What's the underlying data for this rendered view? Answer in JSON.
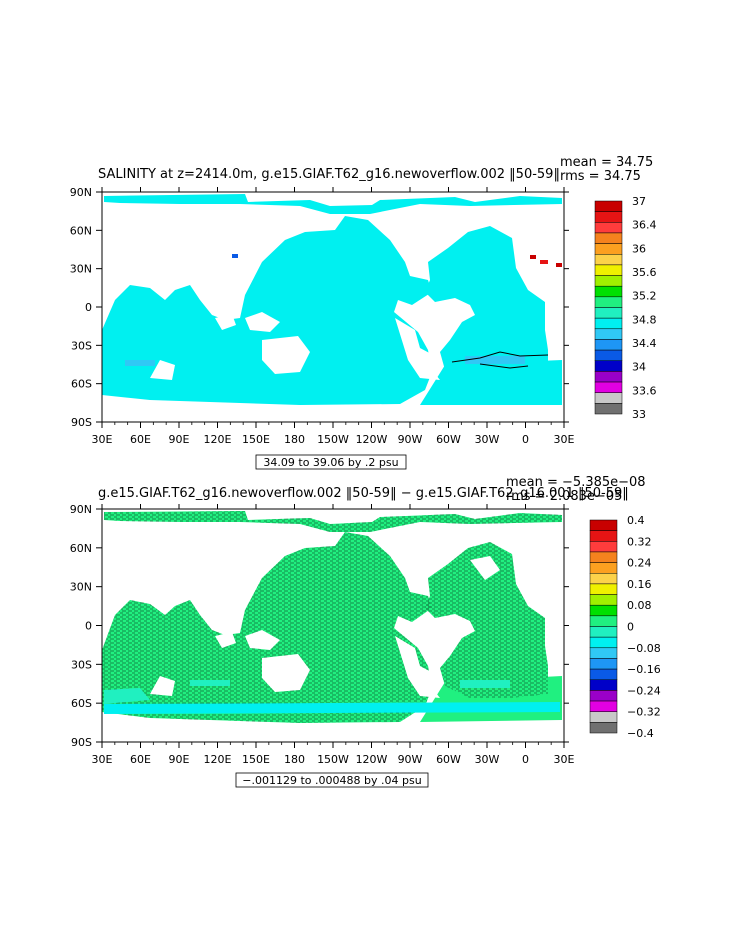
{
  "palette": [
    "#707070",
    "#c8c8c8",
    "#e200e2",
    "#9a00c8",
    "#0000c8",
    "#0a5ae6",
    "#1e96f5",
    "#30c8f5",
    "#00f0f0",
    "#20f0c0",
    "#20f080",
    "#00e000",
    "#a0f000",
    "#f0f000",
    "#fcd24a",
    "#fca020",
    "#f5821e",
    "#ff3c3c",
    "#e61414",
    "#c80000"
  ],
  "chart_data": [
    {
      "type": "heatmap",
      "title": "SALINITY at z=2414.0m, g.e15.GIAF.T62_g16.newoverflow.002 ‖50-59‖",
      "stats": [
        "mean = 34.75",
        "rms = 34.75"
      ],
      "x_ticks": [
        "30E",
        "60E",
        "90E",
        "120E",
        "150E",
        "180",
        "150W",
        "120W",
        "90W",
        "60W",
        "30W",
        "0",
        "30E"
      ],
      "y_ticks": [
        "90N",
        "60N",
        "30N",
        "0",
        "30S",
        "60S",
        "90S"
      ],
      "colorbar_labels": [
        "37",
        "36.4",
        "36",
        "35.6",
        "35.2",
        "34.8",
        "34.4",
        "34",
        "33.6",
        "33"
      ],
      "range_label": "34.09 to 39.06 by .2 psu",
      "dominant_color": "#00f0f0"
    },
    {
      "type": "heatmap",
      "title": "g.e15.GIAF.T62_g16.newoverflow.002 ‖50-59‖ − g.e15.GIAF.T62_g16.001 ‖50-59‖",
      "stats": [
        "mean = −5.385e−08",
        "rms = 2.083e−05"
      ],
      "x_ticks": [
        "30E",
        "60E",
        "90E",
        "120E",
        "150E",
        "180",
        "150W",
        "120W",
        "90W",
        "60W",
        "30W",
        "0",
        "30E"
      ],
      "y_ticks": [
        "90N",
        "60N",
        "30N",
        "0",
        "30S",
        "60S",
        "90S"
      ],
      "colorbar_labels": [
        "0.4",
        "0.32",
        "0.24",
        "0.16",
        "0.08",
        "0",
        "−0.08",
        "−0.16",
        "−0.24",
        "−0.32",
        "−0.4"
      ],
      "range_label": "−.001129 to .000488 by .04 psu",
      "dominant_color": "#20f080"
    }
  ]
}
